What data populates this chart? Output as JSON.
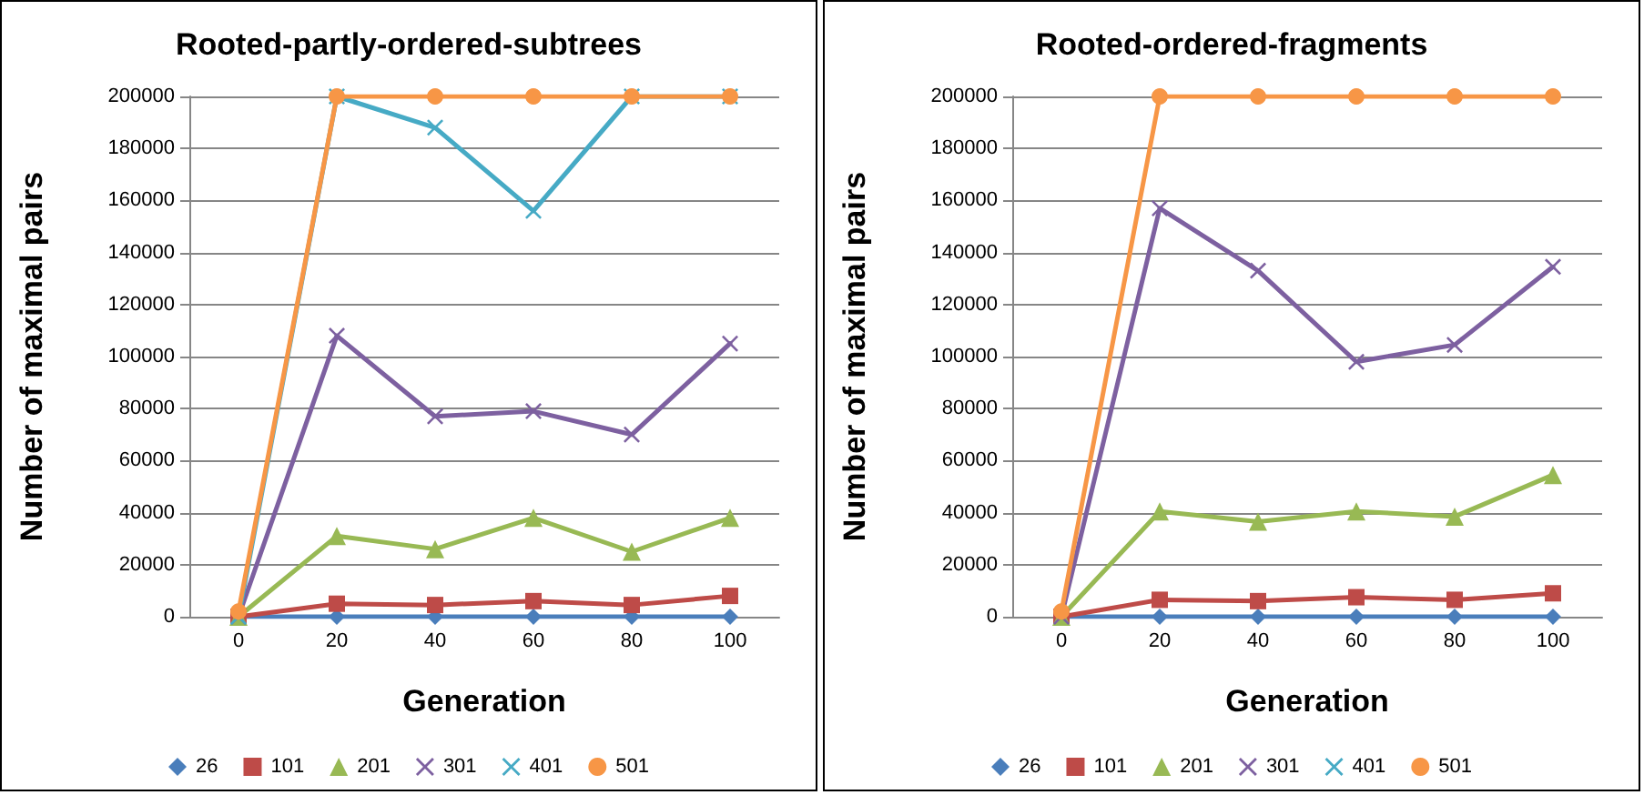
{
  "chart_data": [
    {
      "type": "line",
      "title": "Rooted-partly-ordered-subtrees",
      "xlabel": "Generation",
      "ylabel": "Number of maximal pairs",
      "categories": [
        "0",
        "20",
        "40",
        "60",
        "80",
        "100"
      ],
      "ylim": [
        0,
        200000
      ],
      "yticks": [
        0,
        20000,
        40000,
        60000,
        80000,
        100000,
        120000,
        140000,
        160000,
        180000,
        200000
      ],
      "grid": "y",
      "legend": "bottom",
      "series": [
        {
          "name": "26",
          "color": "#4a7ebb",
          "marker": "diamond",
          "values": [
            0,
            0,
            0,
            0,
            0,
            0
          ]
        },
        {
          "name": "101",
          "color": "#be4b48",
          "marker": "square",
          "values": [
            0,
            5000,
            4500,
            6000,
            4500,
            8000
          ]
        },
        {
          "name": "201",
          "color": "#98b954",
          "marker": "triangle",
          "values": [
            0,
            31000,
            26000,
            38000,
            25000,
            38000
          ]
        },
        {
          "name": "301",
          "color": "#7d60a0",
          "marker": "cross",
          "values": [
            0,
            108000,
            77000,
            79000,
            70000,
            105000
          ]
        },
        {
          "name": "401",
          "color": "#46aac5",
          "marker": "cross",
          "values": [
            0,
            200000,
            188000,
            156000,
            200000,
            200000
          ]
        },
        {
          "name": "501",
          "color": "#f79646",
          "marker": "circle",
          "values": [
            2000,
            200000,
            200000,
            200000,
            200000,
            200000
          ]
        }
      ]
    },
    {
      "type": "line",
      "title": "Rooted-ordered-fragments",
      "xlabel": "Generation",
      "ylabel": "Number of maximal pairs",
      "categories": [
        "0",
        "20",
        "40",
        "60",
        "80",
        "100"
      ],
      "ylim": [
        0,
        200000
      ],
      "yticks": [
        0,
        20000,
        40000,
        60000,
        80000,
        100000,
        120000,
        140000,
        160000,
        180000,
        200000
      ],
      "grid": "y",
      "legend": "bottom",
      "series": [
        {
          "name": "26",
          "color": "#4a7ebb",
          "marker": "diamond",
          "values": [
            0,
            0,
            0,
            0,
            0,
            0
          ]
        },
        {
          "name": "101",
          "color": "#be4b48",
          "marker": "square",
          "values": [
            0,
            6500,
            6000,
            7500,
            6500,
            9000
          ]
        },
        {
          "name": "201",
          "color": "#98b954",
          "marker": "triangle",
          "values": [
            0,
            40500,
            36500,
            40500,
            38500,
            54500
          ]
        },
        {
          "name": "301",
          "color": "#7d60a0",
          "marker": "cross",
          "values": [
            0,
            157000,
            133000,
            98000,
            104500,
            134500
          ]
        },
        {
          "name": "401",
          "color": "#46aac5",
          "marker": "cross",
          "values": [
            null,
            null,
            null,
            null,
            null,
            null
          ]
        },
        {
          "name": "501",
          "color": "#f79646",
          "marker": "circle",
          "values": [
            2000,
            200000,
            200000,
            200000,
            200000,
            200000
          ]
        }
      ]
    }
  ]
}
